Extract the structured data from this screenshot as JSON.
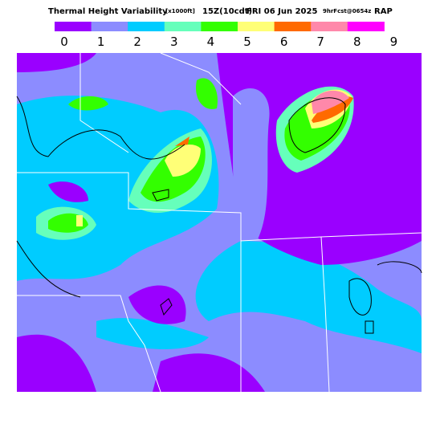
{
  "header": {
    "title": "Thermal Height Variability",
    "units": "[x1000ft]",
    "valid": "15Z(10cdt)",
    "date": "FRI 06 Jun 2025",
    "forecast": "9hrFcst@0654z",
    "model": "RAP"
  },
  "legend": {
    "labels": [
      0,
      1,
      2,
      3,
      4,
      5,
      6,
      7,
      8,
      9
    ],
    "colors": [
      "#9a00ff",
      "#8c8cff",
      "#00ccff",
      "#66ffbb",
      "#33ff00",
      "#ffff77",
      "#ff6a00",
      "#ff88aa",
      "#ff00ff"
    ]
  }
}
